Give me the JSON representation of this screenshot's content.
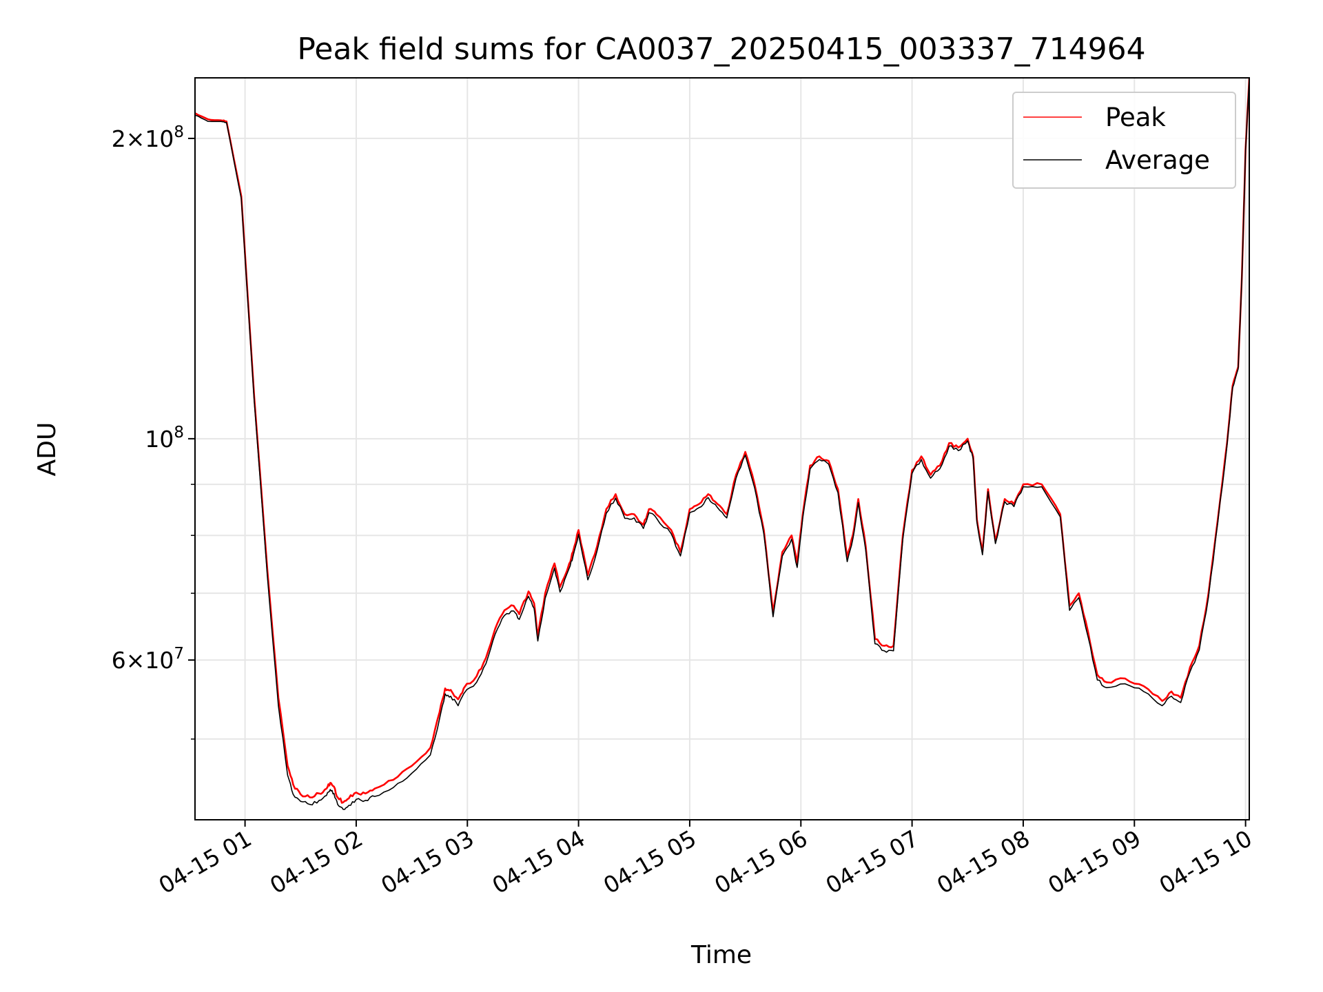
{
  "chart_data": {
    "type": "line",
    "title": "Peak field sums for CA0037_20250415_003337_714964",
    "xlabel": "Time",
    "ylabel": "ADU",
    "y_scale": "log",
    "x_unit": "hours",
    "xlim": [
      "04-15 00:33",
      "04-15 10:02"
    ],
    "ylim": [
      41500000,
      230000000
    ],
    "x_tick_labels": [
      "04-15 01",
      "04-15 02",
      "04-15 03",
      "04-15 04",
      "04-15 05",
      "04-15 06",
      "04-15 07",
      "04-15 08",
      "04-15 09",
      "04-15 10"
    ],
    "y_tick_labels": [
      {
        "value": 200000000,
        "mantissa": "2",
        "exponent": "8"
      },
      {
        "value": 100000000,
        "mantissa": "",
        "exponent": "8"
      },
      {
        "value": 60000000,
        "mantissa": "6",
        "exponent": "7"
      }
    ],
    "y_minor_ticks": [
      50000000,
      70000000,
      80000000,
      90000000
    ],
    "grid": true,
    "legend_position": "top-right",
    "series": [
      {
        "name": "Peak",
        "color": "#ff0000",
        "x": [
          "04-15 00:33",
          "04-15 00:40",
          "04-15 00:47",
          "04-15 00:50",
          "04-15 00:58",
          "04-15 01:05",
          "04-15 01:12",
          "04-15 01:18",
          "04-15 01:23",
          "04-15 01:26",
          "04-15 01:30",
          "04-15 01:35",
          "04-15 01:40",
          "04-15 01:44",
          "04-15 01:46",
          "04-15 01:48",
          "04-15 01:50",
          "04-15 01:53",
          "04-15 01:56",
          "04-15 02:00",
          "04-15 02:05",
          "04-15 02:10",
          "04-15 02:20",
          "04-15 02:30",
          "04-15 02:40",
          "04-15 02:45",
          "04-15 02:48",
          "04-15 02:51",
          "04-15 02:55",
          "04-15 02:58",
          "04-15 03:05",
          "04-15 03:10",
          "04-15 03:15",
          "04-15 03:20",
          "04-15 03:25",
          "04-15 03:28",
          "04-15 03:33",
          "04-15 03:36",
          "04-15 03:38",
          "04-15 03:42",
          "04-15 03:47",
          "04-15 03:50",
          "04-15 03:55",
          "04-15 03:57",
          "04-15 04:00",
          "04-15 04:05",
          "04-15 04:10",
          "04-15 04:15",
          "04-15 04:20",
          "04-15 04:25",
          "04-15 04:30",
          "04-15 04:35",
          "04-15 04:38",
          "04-15 04:42",
          "04-15 04:50",
          "04-15 04:55",
          "04-15 05:00",
          "04-15 05:05",
          "04-15 05:10",
          "04-15 05:15",
          "04-15 05:20",
          "04-15 05:25",
          "04-15 05:30",
          "04-15 05:35",
          "04-15 05:40",
          "04-15 05:45",
          "04-15 05:50",
          "04-15 05:55",
          "04-15 05:58",
          "04-15 06:01",
          "04-15 06:05",
          "04-15 06:10",
          "04-15 06:15",
          "04-15 06:20",
          "04-15 06:25",
          "04-15 06:28",
          "04-15 06:31",
          "04-15 06:35",
          "04-15 06:40",
          "04-15 06:45",
          "04-15 06:50",
          "04-15 06:55",
          "04-15 07:00",
          "04-15 07:05",
          "04-15 07:10",
          "04-15 07:15",
          "04-15 07:20",
          "04-15 07:25",
          "04-15 07:30",
          "04-15 07:33",
          "04-15 07:35",
          "04-15 07:38",
          "04-15 07:41",
          "04-15 07:45",
          "04-15 07:50",
          "04-15 07:55",
          "04-15 08:00",
          "04-15 08:10",
          "04-15 08:20",
          "04-15 08:25",
          "04-15 08:30",
          "04-15 08:35",
          "04-15 08:40",
          "04-15 08:45",
          "04-15 08:55",
          "04-15 09:05",
          "04-15 09:15",
          "04-15 09:20",
          "04-15 09:25",
          "04-15 09:30",
          "04-15 09:35",
          "04-15 09:40",
          "04-15 09:45",
          "04-15 09:50",
          "04-15 09:53",
          "04-15 09:56",
          "04-15 09:58",
          "04-15 10:00",
          "04-15 10:02"
        ],
        "values": [
          212000000,
          209000000,
          208500000,
          208000000,
          175000000,
          110000000,
          74000000,
          55000000,
          47000000,
          45000000,
          44000000,
          43700000,
          44100000,
          44600000,
          45200000,
          44800000,
          43700000,
          43200000,
          43600000,
          44200000,
          44100000,
          44600000,
          45500000,
          47000000,
          49000000,
          53200000,
          56200000,
          56000000,
          54800000,
          56200000,
          57800000,
          60300000,
          64500000,
          67300000,
          68000000,
          66700000,
          70300000,
          68400000,
          63500000,
          70000000,
          75000000,
          71000000,
          75000000,
          77000000,
          81000000,
          73000000,
          78000000,
          85000000,
          88000000,
          84000000,
          84000000,
          82000000,
          85000000,
          84000000,
          81000000,
          77000000,
          85000000,
          86000000,
          88000000,
          86000000,
          84000000,
          92000000,
          97000000,
          90000000,
          81000000,
          67000000,
          77000000,
          80000000,
          75000000,
          84000000,
          94000000,
          96000000,
          95000000,
          89000000,
          76000000,
          80000000,
          87000000,
          78000000,
          63000000,
          62000000,
          62000000,
          80000000,
          93000000,
          96000000,
          92000000,
          94000000,
          99000000,
          98000000,
          100000000,
          96000000,
          83000000,
          77000000,
          89000000,
          79000000,
          87000000,
          86000000,
          90000000,
          90000000,
          84000000,
          68000000,
          70000000,
          64000000,
          58000000,
          57000000,
          57500000,
          56500000,
          54600000,
          55800000,
          55000000,
          59000000,
          62000000,
          70000000,
          83000000,
          99000000,
          113000000,
          118000000,
          145000000,
          195000000,
          230000000
        ]
      },
      {
        "name": "Average",
        "color": "#000000",
        "x": [
          "04-15 00:33",
          "04-15 00:40",
          "04-15 00:47",
          "04-15 00:50",
          "04-15 00:58",
          "04-15 01:05",
          "04-15 01:12",
          "04-15 01:18",
          "04-15 01:23",
          "04-15 01:26",
          "04-15 01:30",
          "04-15 01:35",
          "04-15 01:40",
          "04-15 01:44",
          "04-15 01:46",
          "04-15 01:48",
          "04-15 01:50",
          "04-15 01:53",
          "04-15 01:56",
          "04-15 02:00",
          "04-15 02:05",
          "04-15 02:10",
          "04-15 02:20",
          "04-15 02:30",
          "04-15 02:40",
          "04-15 02:45",
          "04-15 02:48",
          "04-15 02:51",
          "04-15 02:55",
          "04-15 02:58",
          "04-15 03:05",
          "04-15 03:10",
          "04-15 03:15",
          "04-15 03:20",
          "04-15 03:25",
          "04-15 03:28",
          "04-15 03:33",
          "04-15 03:36",
          "04-15 03:38",
          "04-15 03:42",
          "04-15 03:47",
          "04-15 03:50",
          "04-15 03:55",
          "04-15 03:57",
          "04-15 04:00",
          "04-15 04:05",
          "04-15 04:10",
          "04-15 04:15",
          "04-15 04:20",
          "04-15 04:25",
          "04-15 04:30",
          "04-15 04:35",
          "04-15 04:38",
          "04-15 04:42",
          "04-15 04:50",
          "04-15 04:55",
          "04-15 05:00",
          "04-15 05:05",
          "04-15 05:10",
          "04-15 05:15",
          "04-15 05:20",
          "04-15 05:25",
          "04-15 05:30",
          "04-15 05:35",
          "04-15 05:40",
          "04-15 05:45",
          "04-15 05:50",
          "04-15 05:55",
          "04-15 05:58",
          "04-15 06:01",
          "04-15 06:05",
          "04-15 06:10",
          "04-15 06:15",
          "04-15 06:20",
          "04-15 06:25",
          "04-15 06:28",
          "04-15 06:31",
          "04-15 06:35",
          "04-15 06:40",
          "04-15 06:45",
          "04-15 06:50",
          "04-15 06:55",
          "04-15 07:00",
          "04-15 07:05",
          "04-15 07:10",
          "04-15 07:15",
          "04-15 07:20",
          "04-15 07:25",
          "04-15 07:30",
          "04-15 07:33",
          "04-15 07:35",
          "04-15 07:38",
          "04-15 07:41",
          "04-15 07:45",
          "04-15 07:50",
          "04-15 07:55",
          "04-15 08:00",
          "04-15 08:10",
          "04-15 08:20",
          "04-15 08:25",
          "04-15 08:30",
          "04-15 08:35",
          "04-15 08:40",
          "04-15 08:45",
          "04-15 08:55",
          "04-15 09:05",
          "04-15 09:15",
          "04-15 09:20",
          "04-15 09:25",
          "04-15 09:30",
          "04-15 09:35",
          "04-15 09:40",
          "04-15 09:45",
          "04-15 09:50",
          "04-15 09:53",
          "04-15 09:56",
          "04-15 09:58",
          "04-15 10:00",
          "04-15 10:02"
        ],
        "values": [
          211000000,
          208000000,
          208000000,
          207500000,
          174000000,
          109000000,
          73000000,
          54000000,
          46000000,
          44000000,
          43300000,
          43000000,
          43400000,
          43900000,
          44500000,
          44100000,
          43000000,
          42500000,
          42900000,
          43500000,
          43400000,
          43800000,
          44700000,
          46200000,
          48200000,
          52400000,
          55500000,
          55200000,
          54000000,
          55500000,
          57000000,
          59500000,
          63700000,
          66500000,
          67200000,
          65900000,
          69500000,
          67600000,
          62700000,
          69200000,
          74200000,
          70200000,
          74200000,
          76200000,
          80200000,
          72200000,
          77200000,
          84200000,
          87200000,
          83200000,
          83300000,
          81300000,
          84300000,
          83300000,
          80300000,
          76300000,
          84300000,
          85300000,
          87300000,
          85300000,
          83300000,
          91300000,
          96300000,
          89300000,
          80300000,
          66300000,
          76300000,
          79300000,
          74300000,
          83300000,
          93300000,
          95300000,
          94300000,
          88300000,
          75300000,
          79300000,
          86300000,
          77300000,
          62300000,
          61300000,
          61300000,
          79300000,
          92300000,
          95300000,
          91300000,
          93300000,
          98300000,
          97300000,
          99500000,
          95500000,
          82500000,
          76500000,
          88500000,
          78500000,
          86500000,
          85500000,
          89500000,
          89500000,
          83500000,
          67300000,
          69300000,
          63300000,
          57300000,
          56300000,
          56800000,
          55800000,
          54000000,
          55200000,
          54400000,
          58400000,
          61400000,
          69400000,
          82400000,
          98500000,
          112500000,
          117500000,
          144500000,
          194500000,
          229500000
        ]
      }
    ]
  }
}
